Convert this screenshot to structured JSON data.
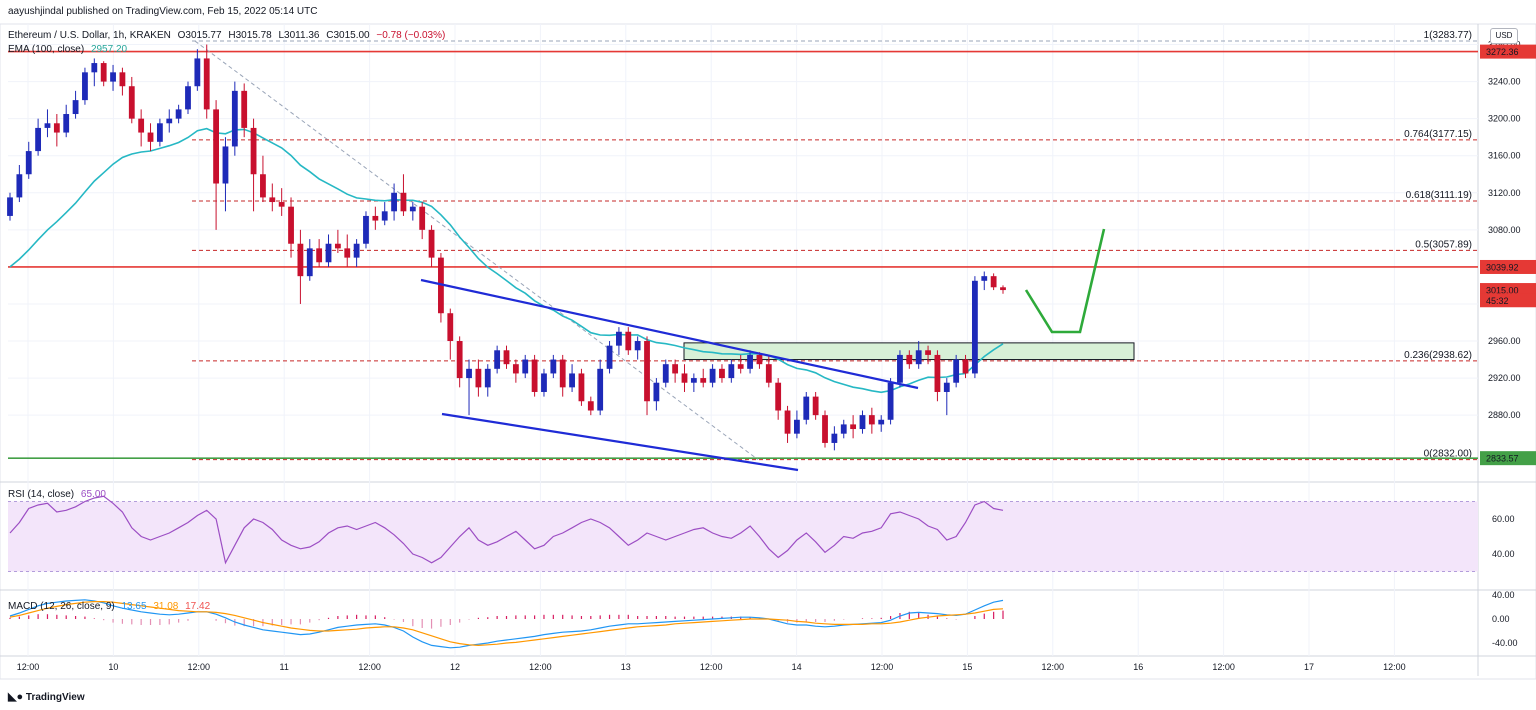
{
  "header": {
    "publisher": "aayushjindal published on TradingView.com, Feb 15, 2022 05:14 UTC",
    "symbol": "Ethereum / U.S. Dollar, 1h, KRAKEN",
    "ohlc": {
      "o": "O3015.77",
      "h": "H3015.78",
      "l": "L3011.36",
      "c": "C3015.00",
      "chg": "−0.78 (−0.03%)"
    },
    "ema_label": "EMA (100, close)",
    "ema_value": "2957.20",
    "currency": "USD"
  },
  "footer": {
    "brand": "TradingView",
    "logo": "tradingview-logo"
  },
  "colors": {
    "up": "#1e2ab8",
    "down": "#c8102e",
    "ema": "#26b8c4",
    "resistance": "#e53935",
    "support": "#43a047",
    "channel": "#1f2bd6",
    "fib": "#c62828",
    "zone": "#d7f0d7",
    "arrow": "#2eaa3a",
    "rsi": "#9c4ec4",
    "rsi_band": "#f3e5fa",
    "macd": "#2196f3",
    "signal": "#ff9800",
    "hist": "#e07aa6"
  },
  "chart_data": {
    "type": "candlestick",
    "price_axis": {
      "ticks": [
        2880,
        2920,
        2960,
        3000,
        3040,
        3080,
        3120,
        3160,
        3200,
        3240,
        3280
      ],
      "ylim": [
        2810,
        3300
      ]
    },
    "time_axis": {
      "ticks": [
        "12:00",
        "10",
        "12:00",
        "11",
        "12:00",
        "12",
        "12:00",
        "13",
        "12:00",
        "14",
        "12:00",
        "15",
        "12:00",
        "16",
        "12:00",
        "17",
        "12:00"
      ]
    },
    "price_labels": [
      {
        "text": "3272.36",
        "value": 3272.36,
        "color": "#e53935"
      },
      {
        "text": "3039.92",
        "value": 3039.92,
        "color": "#e53935"
      },
      {
        "text": "3015.00",
        "value": 3015.0,
        "color": "#e53935"
      },
      {
        "text": "45:32",
        "value": 3004,
        "color": "#e53935"
      },
      {
        "text": "2833.57",
        "value": 2833.57,
        "color": "#43a047"
      }
    ],
    "horizontal_lines": [
      {
        "name": "resistance-top",
        "value": 3272.36,
        "style": "solid",
        "color": "#e53935"
      },
      {
        "name": "resistance-mid",
        "value": 3039.92,
        "style": "solid",
        "color": "#e53935"
      },
      {
        "name": "support",
        "value": 2833.57,
        "style": "solid",
        "color": "#43a047"
      }
    ],
    "fibonacci": [
      {
        "label": "1(3283.77)",
        "value": 3283.77
      },
      {
        "label": "0.764(3177.15)",
        "value": 3177.15
      },
      {
        "label": "0.618(3111.19)",
        "value": 3111.19
      },
      {
        "label": "0.5(3057.89)",
        "value": 3057.89
      },
      {
        "label": "0.236(2938.62)",
        "value": 2938.62
      },
      {
        "label": "0(2832.00)",
        "value": 2832.0
      }
    ],
    "candles": [
      [
        3095,
        3120,
        3090,
        3115
      ],
      [
        3115,
        3150,
        3110,
        3140
      ],
      [
        3140,
        3175,
        3135,
        3165
      ],
      [
        3165,
        3200,
        3160,
        3190
      ],
      [
        3190,
        3210,
        3180,
        3195
      ],
      [
        3195,
        3205,
        3170,
        3185
      ],
      [
        3185,
        3215,
        3180,
        3205
      ],
      [
        3205,
        3230,
        3200,
        3220
      ],
      [
        3220,
        3255,
        3215,
        3250
      ],
      [
        3250,
        3265,
        3235,
        3260
      ],
      [
        3260,
        3262,
        3235,
        3240
      ],
      [
        3240,
        3258,
        3230,
        3250
      ],
      [
        3250,
        3255,
        3225,
        3235
      ],
      [
        3235,
        3245,
        3195,
        3200
      ],
      [
        3200,
        3210,
        3170,
        3185
      ],
      [
        3185,
        3195,
        3165,
        3175
      ],
      [
        3175,
        3200,
        3170,
        3195
      ],
      [
        3195,
        3210,
        3185,
        3200
      ],
      [
        3200,
        3215,
        3195,
        3210
      ],
      [
        3210,
        3240,
        3205,
        3235
      ],
      [
        3235,
        3275,
        3230,
        3265
      ],
      [
        3265,
        3280,
        3200,
        3210
      ],
      [
        3210,
        3220,
        3080,
        3130
      ],
      [
        3130,
        3180,
        3100,
        3170
      ],
      [
        3170,
        3240,
        3160,
        3230
      ],
      [
        3230,
        3238,
        3180,
        3190
      ],
      [
        3190,
        3200,
        3100,
        3140
      ],
      [
        3140,
        3160,
        3110,
        3115
      ],
      [
        3115,
        3130,
        3100,
        3110
      ],
      [
        3110,
        3125,
        3095,
        3105
      ],
      [
        3105,
        3115,
        3050,
        3065
      ],
      [
        3065,
        3080,
        3000,
        3030
      ],
      [
        3030,
        3070,
        3025,
        3060
      ],
      [
        3060,
        3070,
        3040,
        3045
      ],
      [
        3045,
        3075,
        3040,
        3065
      ],
      [
        3065,
        3080,
        3055,
        3060
      ],
      [
        3060,
        3075,
        3040,
        3050
      ],
      [
        3050,
        3070,
        3040,
        3065
      ],
      [
        3065,
        3100,
        3060,
        3095
      ],
      [
        3095,
        3105,
        3080,
        3090
      ],
      [
        3090,
        3110,
        3085,
        3100
      ],
      [
        3100,
        3130,
        3090,
        3120
      ],
      [
        3120,
        3140,
        3095,
        3100
      ],
      [
        3100,
        3110,
        3090,
        3105
      ],
      [
        3105,
        3110,
        3070,
        3080
      ],
      [
        3080,
        3085,
        3040,
        3050
      ],
      [
        3050,
        3055,
        2980,
        2990
      ],
      [
        2990,
        2995,
        2940,
        2960
      ],
      [
        2960,
        2965,
        2910,
        2920
      ],
      [
        2920,
        2940,
        2880,
        2930
      ],
      [
        2930,
        2940,
        2900,
        2910
      ],
      [
        2910,
        2935,
        2900,
        2930
      ],
      [
        2930,
        2955,
        2925,
        2950
      ],
      [
        2950,
        2955,
        2930,
        2935
      ],
      [
        2935,
        2940,
        2915,
        2925
      ],
      [
        2925,
        2945,
        2920,
        2940
      ],
      [
        2940,
        2945,
        2900,
        2905
      ],
      [
        2905,
        2930,
        2900,
        2925
      ],
      [
        2925,
        2945,
        2920,
        2940
      ],
      [
        2940,
        2945,
        2900,
        2910
      ],
      [
        2910,
        2935,
        2905,
        2925
      ],
      [
        2925,
        2930,
        2890,
        2895
      ],
      [
        2895,
        2900,
        2880,
        2885
      ],
      [
        2885,
        2940,
        2880,
        2930
      ],
      [
        2930,
        2960,
        2925,
        2955
      ],
      [
        2955,
        2975,
        2945,
        2970
      ],
      [
        2970,
        2975,
        2945,
        2950
      ],
      [
        2950,
        2965,
        2940,
        2960
      ],
      [
        2960,
        2965,
        2880,
        2895
      ],
      [
        2895,
        2920,
        2885,
        2915
      ],
      [
        2915,
        2940,
        2910,
        2935
      ],
      [
        2935,
        2940,
        2915,
        2925
      ],
      [
        2925,
        2935,
        2905,
        2915
      ],
      [
        2915,
        2925,
        2905,
        2920
      ],
      [
        2920,
        2930,
        2910,
        2915
      ],
      [
        2915,
        2935,
        2910,
        2930
      ],
      [
        2930,
        2935,
        2915,
        2920
      ],
      [
        2920,
        2940,
        2915,
        2935
      ],
      [
        2935,
        2945,
        2925,
        2930
      ],
      [
        2930,
        2950,
        2925,
        2945
      ],
      [
        2945,
        2948,
        2930,
        2935
      ],
      [
        2935,
        2945,
        2910,
        2915
      ],
      [
        2915,
        2920,
        2875,
        2885
      ],
      [
        2885,
        2890,
        2850,
        2860
      ],
      [
        2860,
        2885,
        2855,
        2875
      ],
      [
        2875,
        2905,
        2870,
        2900
      ],
      [
        2900,
        2905,
        2875,
        2880
      ],
      [
        2880,
        2885,
        2845,
        2850
      ],
      [
        2850,
        2868,
        2842,
        2860
      ],
      [
        2860,
        2875,
        2855,
        2870
      ],
      [
        2870,
        2880,
        2855,
        2865
      ],
      [
        2865,
        2885,
        2860,
        2880
      ],
      [
        2880,
        2888,
        2860,
        2870
      ],
      [
        2870,
        2880,
        2862,
        2875
      ],
      [
        2875,
        2920,
        2870,
        2915
      ],
      [
        2915,
        2950,
        2910,
        2945
      ],
      [
        2945,
        2950,
        2930,
        2935
      ],
      [
        2935,
        2960,
        2930,
        2950
      ],
      [
        2950,
        2955,
        2935,
        2945
      ],
      [
        2945,
        2950,
        2895,
        2905
      ],
      [
        2905,
        2920,
        2880,
        2915
      ],
      [
        2915,
        2945,
        2910,
        2940
      ],
      [
        2940,
        2945,
        2920,
        2925
      ],
      [
        2925,
        3030,
        2920,
        3025
      ],
      [
        3025,
        3035,
        3015,
        3030
      ],
      [
        3030,
        3033,
        3015,
        3018
      ],
      [
        3018,
        3020,
        3011,
        3015
      ]
    ],
    "ema": {
      "name": "EMA (100, close)",
      "start": 3040,
      "end": 2957
    },
    "channel": {
      "upper": [
        [
          2979,
          3027
        ],
        [
          2908,
          3018
        ]
      ],
      "lower": [
        [
          2880,
          3026
        ],
        [
          2823,
          3027
        ]
      ]
    },
    "zone": {
      "low": 2940,
      "high": 2958
    },
    "rsi": {
      "legend": "RSI (14, close)",
      "value": "65.00",
      "ticks": [
        40.0,
        60.0
      ],
      "band": [
        30,
        70
      ],
      "ylim": [
        20,
        80
      ],
      "values": [
        52,
        58,
        66,
        68,
        69,
        64,
        65,
        67,
        70,
        72,
        73,
        69,
        64,
        55,
        50,
        48,
        50,
        52,
        55,
        58,
        62,
        65,
        60,
        35,
        45,
        55,
        60,
        58,
        54,
        48,
        45,
        43,
        44,
        47,
        52,
        55,
        56,
        54,
        56,
        58,
        55,
        51,
        46,
        40,
        38,
        35,
        38,
        44,
        50,
        55,
        48,
        45,
        47,
        50,
        53,
        48,
        43,
        45,
        50,
        52,
        55,
        58,
        60,
        58,
        55,
        50,
        45,
        48,
        52,
        50,
        48,
        50,
        52,
        54,
        55,
        52,
        50,
        49,
        52,
        56,
        50,
        43,
        38,
        42,
        48,
        52,
        47,
        41,
        45,
        50,
        49,
        52,
        53,
        55,
        63,
        64,
        62,
        60,
        56,
        54,
        48,
        50,
        58,
        68,
        70,
        66,
        65
      ]
    },
    "macd": {
      "legend": "MACD (12, 26, close, 9)",
      "values": [
        "13.65",
        "31.08",
        "17.42"
      ],
      "ticks": [
        40.0,
        0.0,
        -40.0
      ],
      "ylim": [
        -55,
        45
      ],
      "macd_line": [
        5,
        10,
        16,
        22,
        26,
        28,
        30,
        31,
        32,
        30,
        27,
        22,
        18,
        15,
        12,
        10,
        8,
        7,
        8,
        10,
        12,
        12,
        8,
        2,
        -5,
        -10,
        -14,
        -18,
        -20,
        -22,
        -24,
        -26,
        -25,
        -22,
        -18,
        -14,
        -12,
        -10,
        -9,
        -8,
        -10,
        -14,
        -20,
        -30,
        -38,
        -44,
        -46,
        -48,
        -47,
        -44,
        -42,
        -40,
        -37,
        -35,
        -33,
        -31,
        -29,
        -26,
        -24,
        -22,
        -21,
        -20,
        -18,
        -15,
        -12,
        -10,
        -8,
        -8,
        -7,
        -6,
        -5,
        -4,
        -3,
        -2,
        -1,
        0,
        1,
        2,
        3,
        3,
        2,
        0,
        -4,
        -8,
        -10,
        -10,
        -12,
        -13,
        -12,
        -10,
        -9,
        -8,
        -7,
        -6,
        -2,
        5,
        10,
        11,
        10,
        9,
        7,
        6,
        8,
        15,
        22,
        28,
        31
      ],
      "signal_line": [
        3,
        6,
        10,
        14,
        18,
        21,
        24,
        26,
        28,
        29,
        29,
        28,
        26,
        24,
        22,
        20,
        18,
        16,
        14,
        13,
        12,
        12,
        11,
        9,
        6,
        2,
        -2,
        -6,
        -9,
        -12,
        -15,
        -17,
        -19,
        -20,
        -20,
        -19,
        -18,
        -17,
        -15,
        -14,
        -13,
        -13,
        -15,
        -18,
        -23,
        -28,
        -33,
        -38,
        -41,
        -43,
        -44,
        -43,
        -42,
        -40,
        -39,
        -37,
        -35,
        -33,
        -31,
        -29,
        -27,
        -25,
        -23,
        -21,
        -19,
        -17,
        -15,
        -13,
        -12,
        -11,
        -10,
        -8,
        -7,
        -6,
        -5,
        -4,
        -3,
        -2,
        -1,
        0,
        0,
        0,
        -1,
        -2,
        -4,
        -5,
        -7,
        -8,
        -9,
        -9,
        -9,
        -9,
        -8,
        -8,
        -7,
        -5,
        -2,
        1,
        3,
        5,
        6,
        7,
        8,
        10,
        13,
        16,
        17
      ]
    }
  }
}
